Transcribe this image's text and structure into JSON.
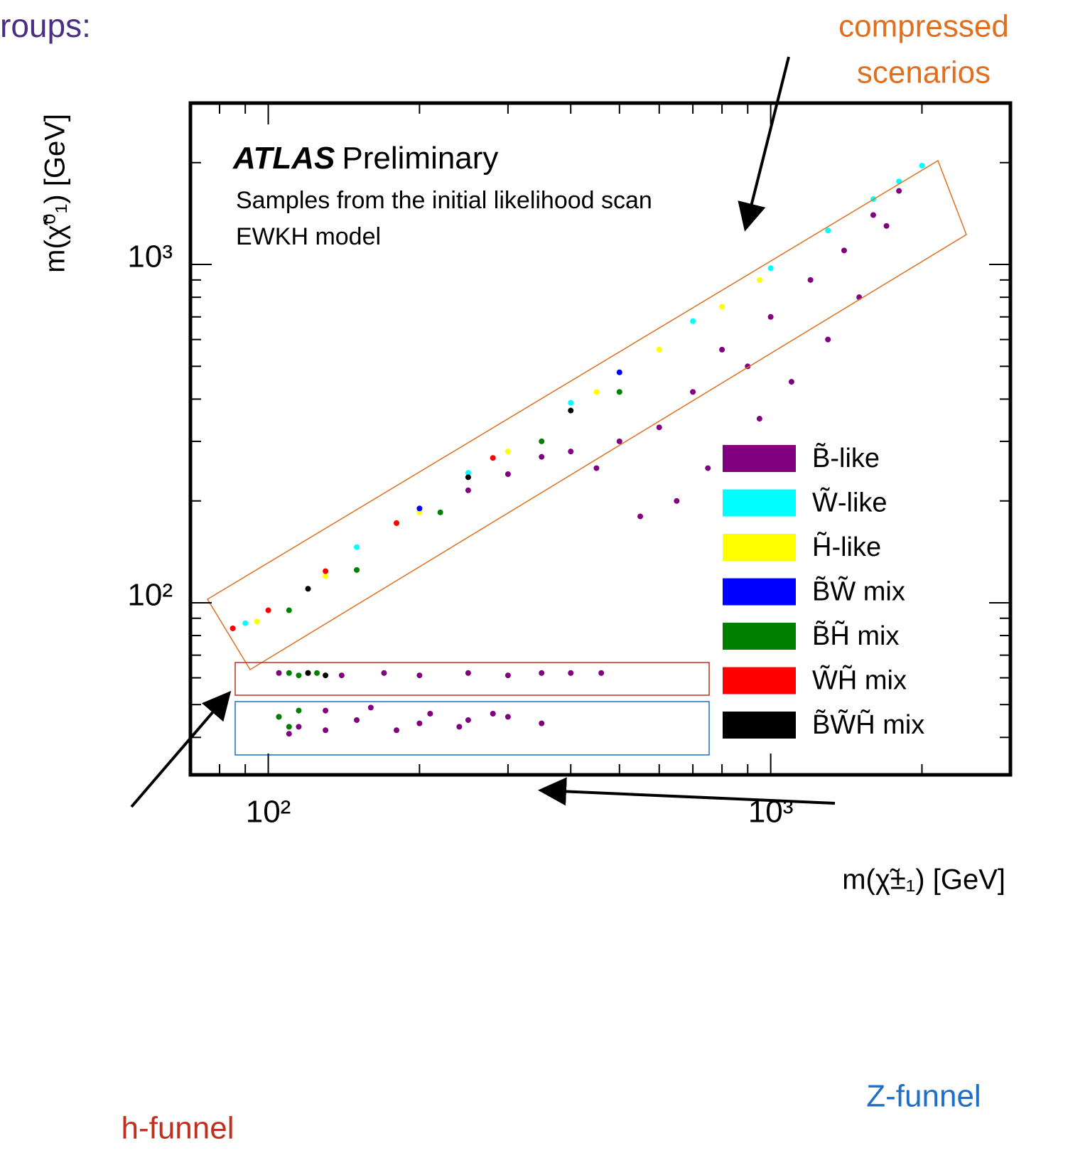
{
  "slide": {
    "heading": "roups:",
    "compressed": [
      "compressed",
      "scenarios"
    ],
    "h_funnel": "h-funnel",
    "z_funnel": "Z-funnel"
  },
  "chart_data": {
    "type": "scatter",
    "annotations": [
      "ATLAS",
      "Preliminary",
      "Samples from the initial likelihood scan",
      "EWKH model"
    ],
    "xlabel": "m(χ̃±₁) [GeV]",
    "ylabel": "m(χ̃⁰₁) [GeV]",
    "log_x": true,
    "log_y": true,
    "xlim": [
      70,
      3000
    ],
    "ylim": [
      31,
      3000
    ],
    "xticks": [
      {
        "value": 100,
        "label": "10²"
      },
      {
        "value": 1000,
        "label": "10³"
      }
    ],
    "yticks": [
      {
        "value": 100,
        "label": "10²"
      },
      {
        "value": 1000,
        "label": "10³"
      }
    ],
    "xminorticks": [
      80,
      90,
      200,
      300,
      400,
      500,
      600,
      700,
      800,
      900,
      2000,
      3000
    ],
    "yminorticks": [
      40,
      50,
      60,
      70,
      80,
      90,
      200,
      300,
      400,
      500,
      600,
      700,
      800,
      900,
      2000
    ],
    "series": [
      {
        "name": "B̃-like",
        "color": "#800080",
        "x": [
          1200,
          1400,
          1600,
          1800,
          1000,
          900,
          800,
          700,
          600,
          500,
          400,
          300,
          250,
          1500,
          1700,
          1300,
          1100,
          950,
          750,
          650,
          550,
          450,
          350,
          105,
          120,
          140,
          170,
          200,
          250,
          300,
          350,
          400,
          460,
          105,
          115,
          130,
          150,
          180,
          210,
          250,
          300,
          350,
          110,
          130,
          160,
          200,
          240,
          280
        ],
        "y": [
          900,
          1100,
          1400,
          1650,
          700,
          500,
          560,
          420,
          330,
          300,
          280,
          240,
          215,
          800,
          1300,
          600,
          450,
          350,
          250,
          200,
          180,
          250,
          270,
          62,
          62,
          61,
          62,
          61,
          62,
          61,
          62,
          62,
          62,
          46,
          43,
          48,
          45,
          42,
          47,
          45,
          46,
          44,
          41,
          42,
          49,
          44,
          43,
          47
        ]
      },
      {
        "name": "W̃-like",
        "color": "#00ffff",
        "x": [
          90,
          150,
          250,
          400,
          700,
          1000,
          1300,
          1600,
          1800,
          2000
        ],
        "y": [
          87,
          146,
          242,
          390,
          680,
          975,
          1260,
          1560,
          1760,
          1960
        ]
      },
      {
        "name": "H̃-like",
        "color": "#ffff00",
        "x": [
          95,
          130,
          200,
          300,
          450,
          600,
          800,
          950
        ],
        "y": [
          88,
          120,
          185,
          280,
          420,
          560,
          750,
          900
        ]
      },
      {
        "name": "B̃W̃ mix",
        "color": "#0000ff",
        "x": [
          200,
          500
        ],
        "y": [
          190,
          480
        ]
      },
      {
        "name": "B̃H̃ mix",
        "color": "#008000",
        "x": [
          110,
          150,
          220,
          350,
          500,
          110,
          115,
          125,
          105,
          110,
          115
        ],
        "y": [
          95,
          125,
          185,
          300,
          420,
          62,
          61,
          62,
          46,
          43,
          48
        ]
      },
      {
        "name": "W̃H̃ mix",
        "color": "#ff0000",
        "x": [
          85,
          100,
          130,
          180,
          280
        ],
        "y": [
          84,
          95,
          124,
          172,
          268
        ]
      },
      {
        "name": "B̃W̃H̃ mix",
        "color": "#000000",
        "x": [
          120,
          250,
          400,
          120,
          130
        ],
        "y": [
          110,
          235,
          370,
          62,
          61
        ]
      }
    ]
  }
}
